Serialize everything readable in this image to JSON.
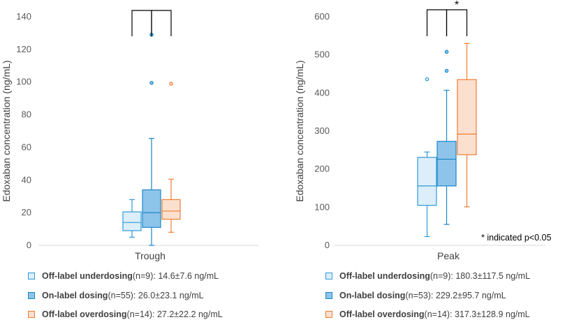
{
  "colors": {
    "underdosing": "#2E9AD8",
    "onlabel": "#1A86C8",
    "overdosing": "#ED7D31",
    "underdosing_fill": "#DCEEF9",
    "onlabel_fill": "#8EC4EA",
    "overdosing_fill": "#FCE0CF",
    "axis": "#d9d9d9",
    "bracket": "#000000"
  },
  "footnote": "* indicated p<0.05",
  "chart_data": [
    {
      "type": "box",
      "ylabel": "Edoxaban concentration (ng/mL)",
      "category": "Trough",
      "ylim": [
        0,
        140
      ],
      "yticks": [
        0,
        20,
        40,
        60,
        80,
        100,
        120,
        140
      ],
      "boxes": [
        {
          "group": "Off-label underdosing",
          "min": 5,
          "q1": 9,
          "median": 14,
          "q3": 20.5,
          "max": 28,
          "outliers": []
        },
        {
          "group": "On-label dosing",
          "min": 0,
          "q1": 11,
          "median": 20,
          "q3": 34,
          "max": 65.5,
          "outliers": [
            99.5,
            129
          ]
        },
        {
          "group": "Off-label overdosing",
          "min": 8,
          "q1": 16,
          "median": 21,
          "q3": 28,
          "max": 40.5,
          "outliers": [
            99
          ]
        }
      ],
      "significance": [
        {
          "from": "Off-label underdosing",
          "to": "On-label dosing",
          "label": ""
        },
        {
          "from": "On-label dosing",
          "to": "Off-label overdosing",
          "label": ""
        }
      ],
      "legend": [
        {
          "name": "Off-label underdosing",
          "stat": "(n=9): 14.6±7.6 ng/mL"
        },
        {
          "name": "On-label dosing",
          "stat": "(n=55): 26.0±23.1 ng/mL"
        },
        {
          "name": "Off-label overdosing",
          "stat": "(n=14): 27.2±22.2 ng/mL"
        }
      ]
    },
    {
      "type": "box",
      "ylabel": "Edoxaban concentration (ng/mL)",
      "category": "Peak",
      "ylim": [
        0,
        600
      ],
      "yticks": [
        0,
        100,
        200,
        300,
        400,
        500,
        600
      ],
      "boxes": [
        {
          "group": "Off-label underdosing",
          "min": 23,
          "q1": 105,
          "median": 156,
          "q3": 231,
          "max": 245,
          "outliers": [
            436
          ]
        },
        {
          "group": "On-label dosing",
          "min": 55,
          "q1": 156,
          "median": 226,
          "q3": 273,
          "max": 407,
          "outliers": [
            458,
            508
          ]
        },
        {
          "group": "Off-label overdosing",
          "min": 101,
          "q1": 238,
          "median": 292,
          "q3": 435,
          "max": 530,
          "outliers": []
        }
      ],
      "significance": [
        {
          "from": "Off-label underdosing",
          "to": "On-label dosing",
          "label": ""
        },
        {
          "from": "On-label dosing",
          "to": "Off-label overdosing",
          "label": "*"
        }
      ],
      "legend": [
        {
          "name": "Off-label underdosing",
          "stat": "(n=9): 180.3±117.5 ng/mL"
        },
        {
          "name": "On-label dosing",
          "stat": "(n=53): 229.2±95.7 ng/mL"
        },
        {
          "name": "Off-label overdosing",
          "stat": "(n=14): 317.3±128.9 ng/mL"
        }
      ]
    }
  ]
}
